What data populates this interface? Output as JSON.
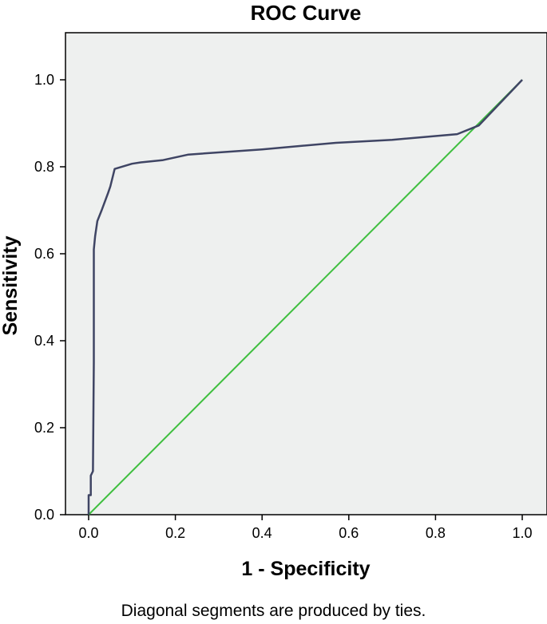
{
  "chart_data": {
    "type": "line",
    "title": "ROC Curve",
    "xlabel": "1 - Specificity",
    "ylabel": "Sensitivity",
    "xlim": [
      0,
      1
    ],
    "ylim": [
      0,
      1
    ],
    "x_ticks": [
      "0.0",
      "0.2",
      "0.4",
      "0.6",
      "0.8",
      "1.0"
    ],
    "y_ticks": [
      "0.0",
      "0.2",
      "0.4",
      "0.6",
      "0.8",
      "1.0"
    ],
    "grid": false,
    "plot_background": "#eef0ef",
    "series": [
      {
        "color": "#3f4564",
        "x": [
          0.0,
          0.0,
          0.005,
          0.005,
          0.01,
          0.012,
          0.012,
          0.015,
          0.02,
          0.03,
          0.045,
          0.05,
          0.06,
          0.1,
          0.12,
          0.17,
          0.23,
          0.4,
          0.57,
          0.7,
          0.85,
          0.9,
          1.0
        ],
        "y": [
          0.0,
          0.045,
          0.045,
          0.09,
          0.1,
          0.35,
          0.61,
          0.64,
          0.675,
          0.7,
          0.74,
          0.755,
          0.795,
          0.807,
          0.81,
          0.815,
          0.828,
          0.84,
          0.855,
          0.862,
          0.875,
          0.895,
          1.0
        ]
      },
      {
        "color": "#3fbf3f",
        "x": [
          0,
          1
        ],
        "y": [
          0,
          1
        ]
      }
    ]
  },
  "footnote": "Diagonal segments are produced by ties."
}
